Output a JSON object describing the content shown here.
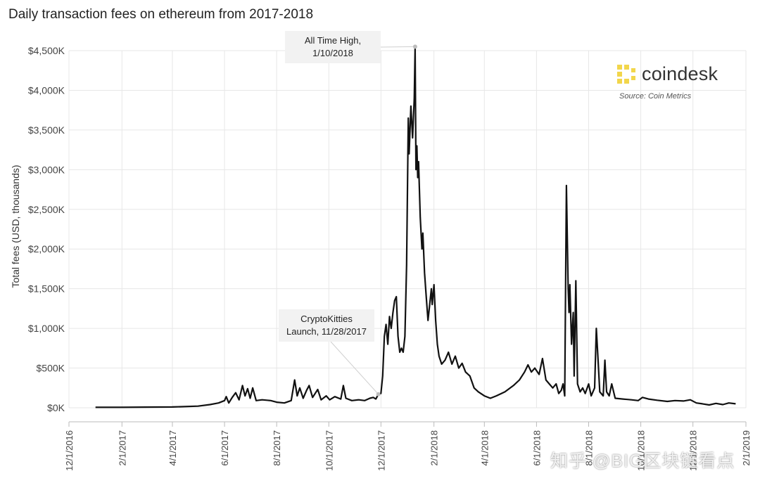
{
  "title": "Daily transaction fees on ethereum from 2017-2018",
  "brand": {
    "name": "coindesk",
    "source": "Source: Coin Metrics",
    "logo_color": "#f2d64b"
  },
  "watermark": "知乎 @BIG区块链看点",
  "colors": {
    "line": "#111111",
    "grid": "#e7e7e7",
    "annotation_bg": "#f2f2f2"
  },
  "chart_data": {
    "type": "line",
    "title": "Daily transaction fees on ethereum from 2017-2018",
    "ylabel": "Total fees (USD, thousands)",
    "xlabel": "",
    "xlim": [
      "2016-12-01",
      "2019-02-01"
    ],
    "ylim": [
      0,
      4500
    ],
    "y_ticks": [
      0,
      500,
      1000,
      1500,
      2000,
      2500,
      3000,
      3500,
      4000,
      4500
    ],
    "y_tick_labels": [
      "$0K",
      "$500K",
      "$1,000K",
      "$1,500K",
      "$2,000K",
      "$2,500K",
      "$3,000K",
      "$3,500K",
      "$4,000K",
      "$4,500K"
    ],
    "x_ticks": [
      "2016-12-01",
      "2017-02-01",
      "2017-04-01",
      "2017-06-01",
      "2017-08-01",
      "2017-10-01",
      "2017-12-01",
      "2018-02-01",
      "2018-04-01",
      "2018-06-01",
      "2018-08-01",
      "2018-10-01",
      "2018-12-01",
      "2019-02-01"
    ],
    "x_tick_labels": [
      "12/1/2016",
      "2/1/2017",
      "4/1/2017",
      "6/1/2017",
      "8/1/2017",
      "10/1/2017",
      "12/1/2017",
      "2/1/2018",
      "4/1/2018",
      "6/1/2018",
      "8/1/2018",
      "10/1/2018",
      "12/1/2018",
      "2/1/2019"
    ],
    "grid": true,
    "series": [
      {
        "points": [
          [
            "2017-01-01",
            5
          ],
          [
            "2017-02-01",
            5
          ],
          [
            "2017-03-01",
            8
          ],
          [
            "2017-04-01",
            10
          ],
          [
            "2017-05-01",
            20
          ],
          [
            "2017-05-15",
            40
          ],
          [
            "2017-05-25",
            60
          ],
          [
            "2017-06-01",
            90
          ],
          [
            "2017-06-03",
            140
          ],
          [
            "2017-06-06",
            60
          ],
          [
            "2017-06-10",
            130
          ],
          [
            "2017-06-14",
            190
          ],
          [
            "2017-06-18",
            100
          ],
          [
            "2017-06-22",
            280
          ],
          [
            "2017-06-25",
            150
          ],
          [
            "2017-06-28",
            240
          ],
          [
            "2017-07-01",
            120
          ],
          [
            "2017-07-04",
            250
          ],
          [
            "2017-07-08",
            90
          ],
          [
            "2017-07-15",
            100
          ],
          [
            "2017-07-25",
            90
          ],
          [
            "2017-08-01",
            70
          ],
          [
            "2017-08-10",
            60
          ],
          [
            "2017-08-18",
            90
          ],
          [
            "2017-08-22",
            350
          ],
          [
            "2017-08-25",
            150
          ],
          [
            "2017-08-28",
            250
          ],
          [
            "2017-09-01",
            120
          ],
          [
            "2017-09-05",
            220
          ],
          [
            "2017-09-08",
            280
          ],
          [
            "2017-09-12",
            130
          ],
          [
            "2017-09-18",
            230
          ],
          [
            "2017-09-22",
            100
          ],
          [
            "2017-09-28",
            150
          ],
          [
            "2017-10-02",
            100
          ],
          [
            "2017-10-08",
            140
          ],
          [
            "2017-10-15",
            110
          ],
          [
            "2017-10-18",
            280
          ],
          [
            "2017-10-21",
            120
          ],
          [
            "2017-10-28",
            90
          ],
          [
            "2017-11-05",
            100
          ],
          [
            "2017-11-12",
            90
          ],
          [
            "2017-11-18",
            120
          ],
          [
            "2017-11-22",
            130
          ],
          [
            "2017-11-25",
            110
          ],
          [
            "2017-11-28",
            170
          ],
          [
            "2017-12-01",
            180
          ],
          [
            "2017-12-03",
            400
          ],
          [
            "2017-12-05",
            900
          ],
          [
            "2017-12-07",
            1050
          ],
          [
            "2017-12-09",
            800
          ],
          [
            "2017-12-11",
            1150
          ],
          [
            "2017-12-13",
            1000
          ],
          [
            "2017-12-15",
            1200
          ],
          [
            "2017-12-17",
            1350
          ],
          [
            "2017-12-19",
            1400
          ],
          [
            "2017-12-21",
            900
          ],
          [
            "2017-12-23",
            700
          ],
          [
            "2017-12-25",
            750
          ],
          [
            "2017-12-27",
            700
          ],
          [
            "2017-12-29",
            900
          ],
          [
            "2017-12-31",
            1800
          ],
          [
            "2018-01-02",
            3650
          ],
          [
            "2018-01-03",
            3200
          ],
          [
            "2018-01-05",
            3800
          ],
          [
            "2018-01-07",
            3400
          ],
          [
            "2018-01-09",
            3900
          ],
          [
            "2018-01-10",
            4550
          ],
          [
            "2018-01-11",
            3000
          ],
          [
            "2018-01-12",
            3300
          ],
          [
            "2018-01-13",
            2900
          ],
          [
            "2018-01-14",
            3100
          ],
          [
            "2018-01-16",
            2400
          ],
          [
            "2018-01-18",
            2000
          ],
          [
            "2018-01-19",
            2200
          ],
          [
            "2018-01-21",
            1700
          ],
          [
            "2018-01-23",
            1400
          ],
          [
            "2018-01-25",
            1100
          ],
          [
            "2018-01-27",
            1300
          ],
          [
            "2018-01-29",
            1500
          ],
          [
            "2018-01-30",
            1300
          ],
          [
            "2018-02-01",
            1550
          ],
          [
            "2018-02-03",
            1100
          ],
          [
            "2018-02-05",
            800
          ],
          [
            "2018-02-07",
            650
          ],
          [
            "2018-02-10",
            550
          ],
          [
            "2018-02-14",
            600
          ],
          [
            "2018-02-18",
            700
          ],
          [
            "2018-02-22",
            550
          ],
          [
            "2018-02-26",
            650
          ],
          [
            "2018-03-02",
            500
          ],
          [
            "2018-03-06",
            560
          ],
          [
            "2018-03-10",
            450
          ],
          [
            "2018-03-15",
            400
          ],
          [
            "2018-03-20",
            250
          ],
          [
            "2018-03-25",
            200
          ],
          [
            "2018-04-01",
            150
          ],
          [
            "2018-04-08",
            120
          ],
          [
            "2018-04-15",
            150
          ],
          [
            "2018-04-25",
            200
          ],
          [
            "2018-05-05",
            280
          ],
          [
            "2018-05-12",
            350
          ],
          [
            "2018-05-18",
            450
          ],
          [
            "2018-05-22",
            540
          ],
          [
            "2018-05-26",
            450
          ],
          [
            "2018-05-30",
            500
          ],
          [
            "2018-06-04",
            420
          ],
          [
            "2018-06-08",
            620
          ],
          [
            "2018-06-12",
            350
          ],
          [
            "2018-06-16",
            300
          ],
          [
            "2018-06-20",
            250
          ],
          [
            "2018-06-24",
            300
          ],
          [
            "2018-06-27",
            180
          ],
          [
            "2018-06-30",
            220
          ],
          [
            "2018-07-02",
            300
          ],
          [
            "2018-07-04",
            150
          ],
          [
            "2018-07-06",
            2800
          ],
          [
            "2018-07-08",
            1500
          ],
          [
            "2018-07-09",
            1200
          ],
          [
            "2018-07-10",
            1550
          ],
          [
            "2018-07-12",
            800
          ],
          [
            "2018-07-14",
            1200
          ],
          [
            "2018-07-15",
            400
          ],
          [
            "2018-07-17",
            1600
          ],
          [
            "2018-07-19",
            300
          ],
          [
            "2018-07-22",
            200
          ],
          [
            "2018-07-25",
            250
          ],
          [
            "2018-07-28",
            180
          ],
          [
            "2018-08-01",
            300
          ],
          [
            "2018-08-04",
            150
          ],
          [
            "2018-08-08",
            250
          ],
          [
            "2018-08-10",
            1000
          ],
          [
            "2018-08-12",
            600
          ],
          [
            "2018-08-14",
            200
          ],
          [
            "2018-08-18",
            150
          ],
          [
            "2018-08-20",
            600
          ],
          [
            "2018-08-22",
            200
          ],
          [
            "2018-08-25",
            150
          ],
          [
            "2018-08-28",
            300
          ],
          [
            "2018-09-01",
            120
          ],
          [
            "2018-09-10",
            110
          ],
          [
            "2018-09-20",
            100
          ],
          [
            "2018-09-28",
            90
          ],
          [
            "2018-10-03",
            130
          ],
          [
            "2018-10-10",
            110
          ],
          [
            "2018-10-20",
            95
          ],
          [
            "2018-11-01",
            80
          ],
          [
            "2018-11-10",
            90
          ],
          [
            "2018-11-20",
            85
          ],
          [
            "2018-11-28",
            100
          ],
          [
            "2018-12-05",
            60
          ],
          [
            "2018-12-12",
            50
          ],
          [
            "2018-12-20",
            35
          ],
          [
            "2018-12-28",
            55
          ],
          [
            "2019-01-05",
            40
          ],
          [
            "2019-01-12",
            60
          ],
          [
            "2019-01-20",
            50
          ]
        ]
      }
    ],
    "annotations": [
      {
        "text_lines": [
          "All Time High,",
          "1/10/2018"
        ],
        "date": "2018-01-10",
        "value": 4550
      },
      {
        "text_lines": [
          "CryptoKitties",
          "Launch, 11/28/2017"
        ],
        "date": "2017-11-28",
        "value": 170
      }
    ]
  }
}
